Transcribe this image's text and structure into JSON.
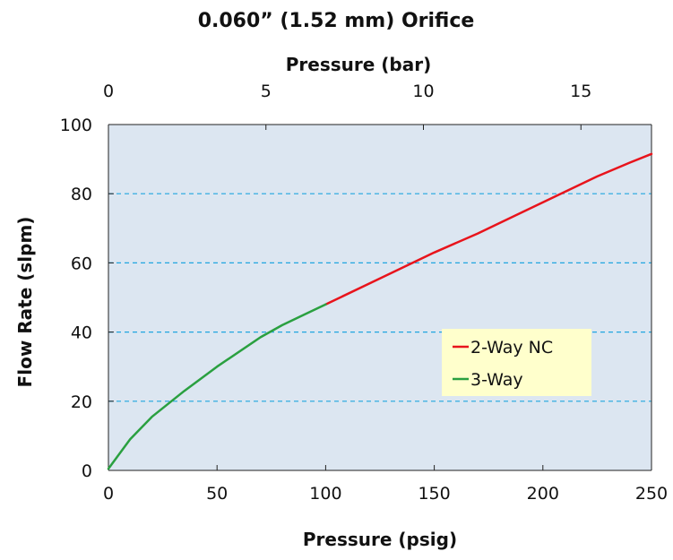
{
  "chart_data": {
    "type": "line",
    "title": "0.060” (1.52 mm) Orifice",
    "xlabel": "Pressure (psig)",
    "x2label": "Pressure (bar)",
    "ylabel": "Flow Rate (slpm)",
    "xlim": [
      0,
      250
    ],
    "ylim": [
      0,
      100
    ],
    "x2lim": [
      0,
      17.24
    ],
    "x_ticks": [
      "0",
      "50",
      "100",
      "150",
      "200",
      "250"
    ],
    "x_tick_values": [
      0,
      50,
      100,
      150,
      200,
      250
    ],
    "y_ticks": [
      "0",
      "20",
      "40",
      "60",
      "80",
      "100"
    ],
    "y_tick_values": [
      0,
      20,
      40,
      60,
      80,
      100
    ],
    "x2_ticks": [
      "0",
      "5",
      "10",
      "15"
    ],
    "x2_tick_values": [
      0,
      5,
      10,
      15
    ],
    "grid": "horizontal dashed",
    "legend_position": "right-middle",
    "plot_background": "#dce6f1",
    "legend_background": "#ffffcc",
    "grid_color": "#1fa5e0",
    "series": [
      {
        "name": "2-Way NC",
        "color": "#e8141c",
        "x": [
          100,
          125,
          150,
          170,
          190,
          210,
          225,
          240,
          250
        ],
        "y": [
          48,
          55.5,
          63,
          68.5,
          74.5,
          80.5,
          85,
          89,
          91.5
        ]
      },
      {
        "name": "3-Way",
        "color": "#2aa040",
        "x": [
          0,
          10,
          20,
          35,
          50,
          70,
          80,
          90,
          100
        ],
        "y": [
          0.5,
          9,
          15.5,
          23,
          30,
          38.5,
          42,
          45,
          48
        ]
      }
    ]
  }
}
